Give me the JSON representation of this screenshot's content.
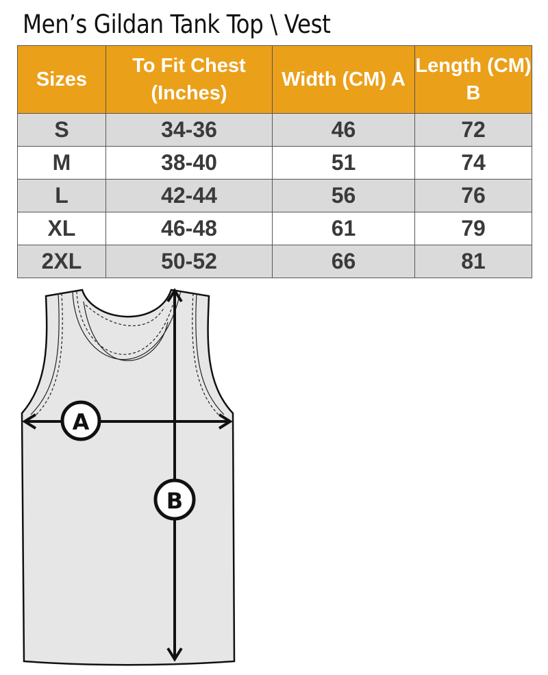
{
  "title": "Men’s Gildan Tank Top \\ Vest",
  "table": {
    "headers": [
      "Sizes",
      "To Fit Chest (Inches)",
      "Width (CM) A",
      "Length  (CM) B"
    ],
    "rows": [
      [
        "S",
        "34-36",
        "46",
        "72"
      ],
      [
        "M",
        "38-40",
        "51",
        "74"
      ],
      [
        "L",
        "42-44",
        "56",
        "76"
      ],
      [
        "XL",
        "46-48",
        "61",
        "79"
      ],
      [
        "2XL",
        "50-52",
        "66",
        "81"
      ]
    ]
  },
  "diagram": {
    "label_a": "A",
    "label_b": "B"
  },
  "colors": {
    "header_bg": "#eba01a",
    "header_text": "#ffffff",
    "row_alt": "#dadada",
    "garment": "#e6e6e6"
  }
}
